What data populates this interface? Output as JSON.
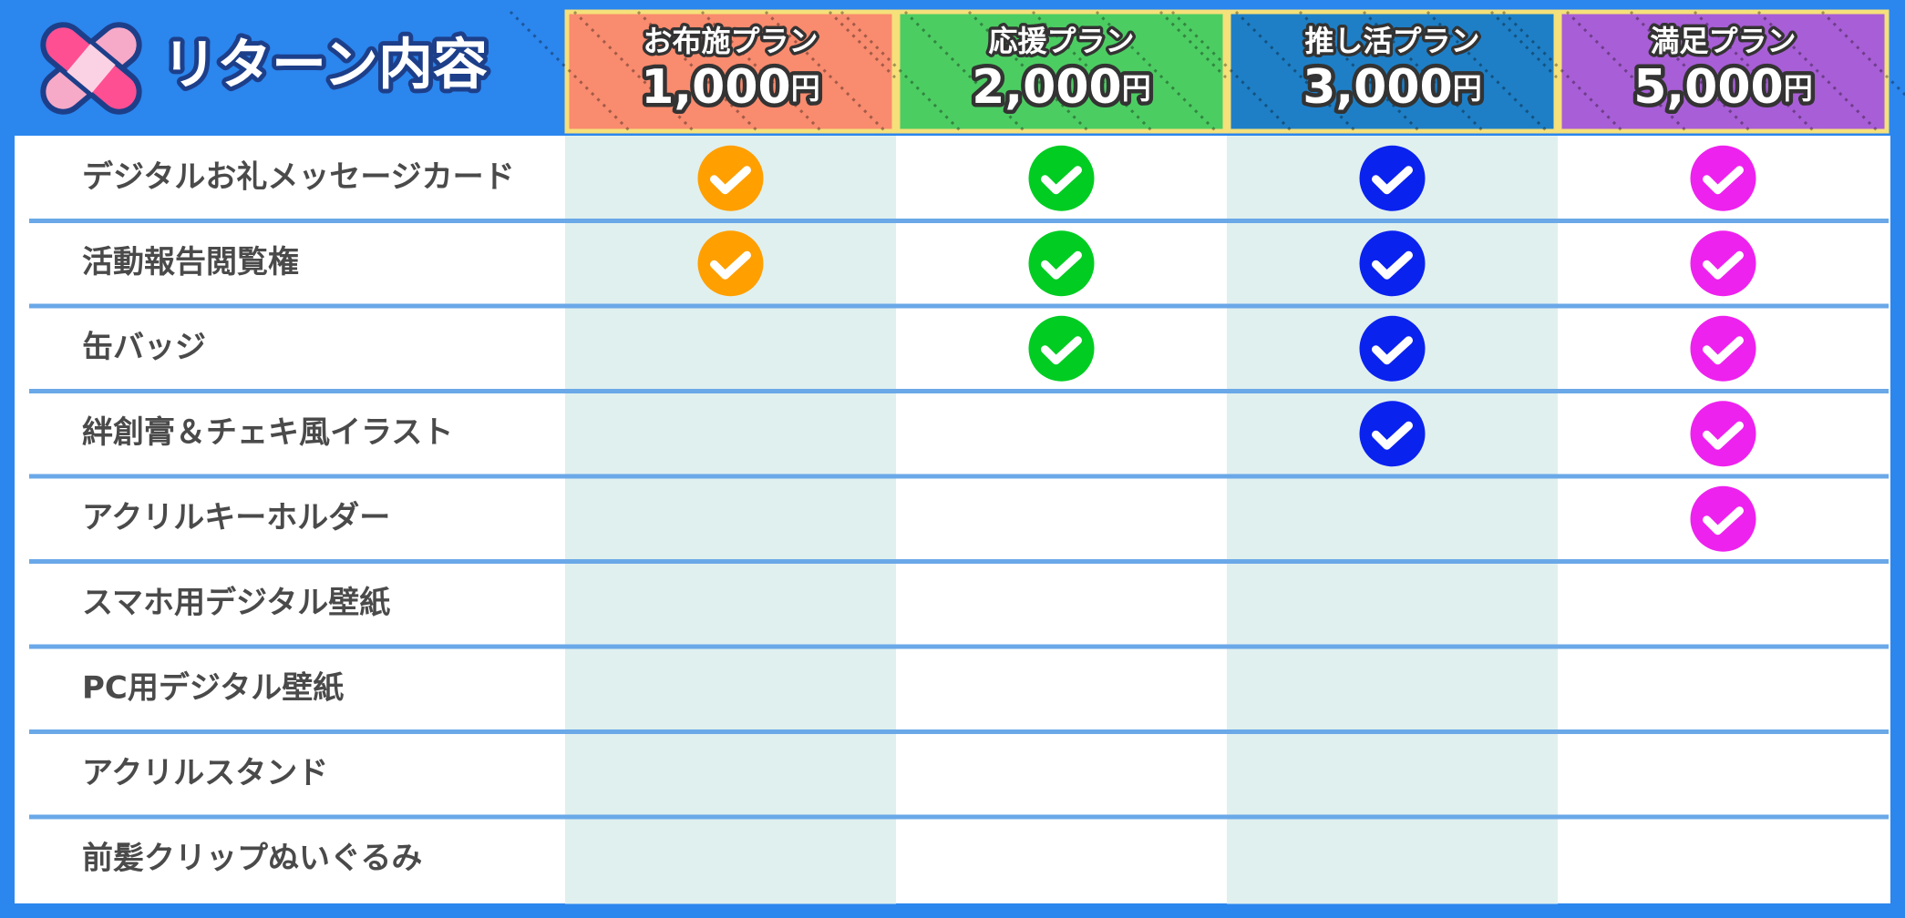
{
  "header": {
    "title": "リターン内容"
  },
  "plans": [
    {
      "name": "お布施プラン",
      "price": "1,000",
      "unit": "円",
      "color": "#f98b6e",
      "check_color": "#ff9f00",
      "shade": true
    },
    {
      "name": "応援プラン",
      "price": "2,000",
      "unit": "円",
      "color": "#4ccd62",
      "check_color": "#00cc22",
      "shade": false
    },
    {
      "name": "推し活プラン",
      "price": "3,000",
      "unit": "円",
      "color": "#1e7fc6",
      "check_color": "#0a22ee",
      "shade": true
    },
    {
      "name": "満足プラン",
      "price": "5,000",
      "unit": "円",
      "color": "#a85ed6",
      "check_color": "#ee22ee",
      "shade": false
    }
  ],
  "rows": [
    {
      "item": "デジタルお礼メッセージカード",
      "included": [
        true,
        true,
        true,
        true
      ]
    },
    {
      "item": "活動報告閲覧権",
      "included": [
        true,
        true,
        true,
        true
      ]
    },
    {
      "item": "缶バッジ",
      "included": [
        false,
        true,
        true,
        true
      ]
    },
    {
      "item": "絆創膏＆チェキ風イラスト",
      "included": [
        false,
        false,
        true,
        true
      ]
    },
    {
      "item": "アクリルキーホルダー",
      "included": [
        false,
        false,
        false,
        true
      ]
    },
    {
      "item": "スマホ用デジタル壁紙",
      "included": [
        false,
        false,
        false,
        false
      ]
    },
    {
      "item": "PC用デジタル壁紙",
      "included": [
        false,
        false,
        false,
        false
      ]
    },
    {
      "item": "アクリルスタンド",
      "included": [
        false,
        false,
        false,
        false
      ]
    },
    {
      "item": "前髪クリップぬいぐるみ",
      "included": [
        false,
        false,
        false,
        false
      ]
    }
  ]
}
